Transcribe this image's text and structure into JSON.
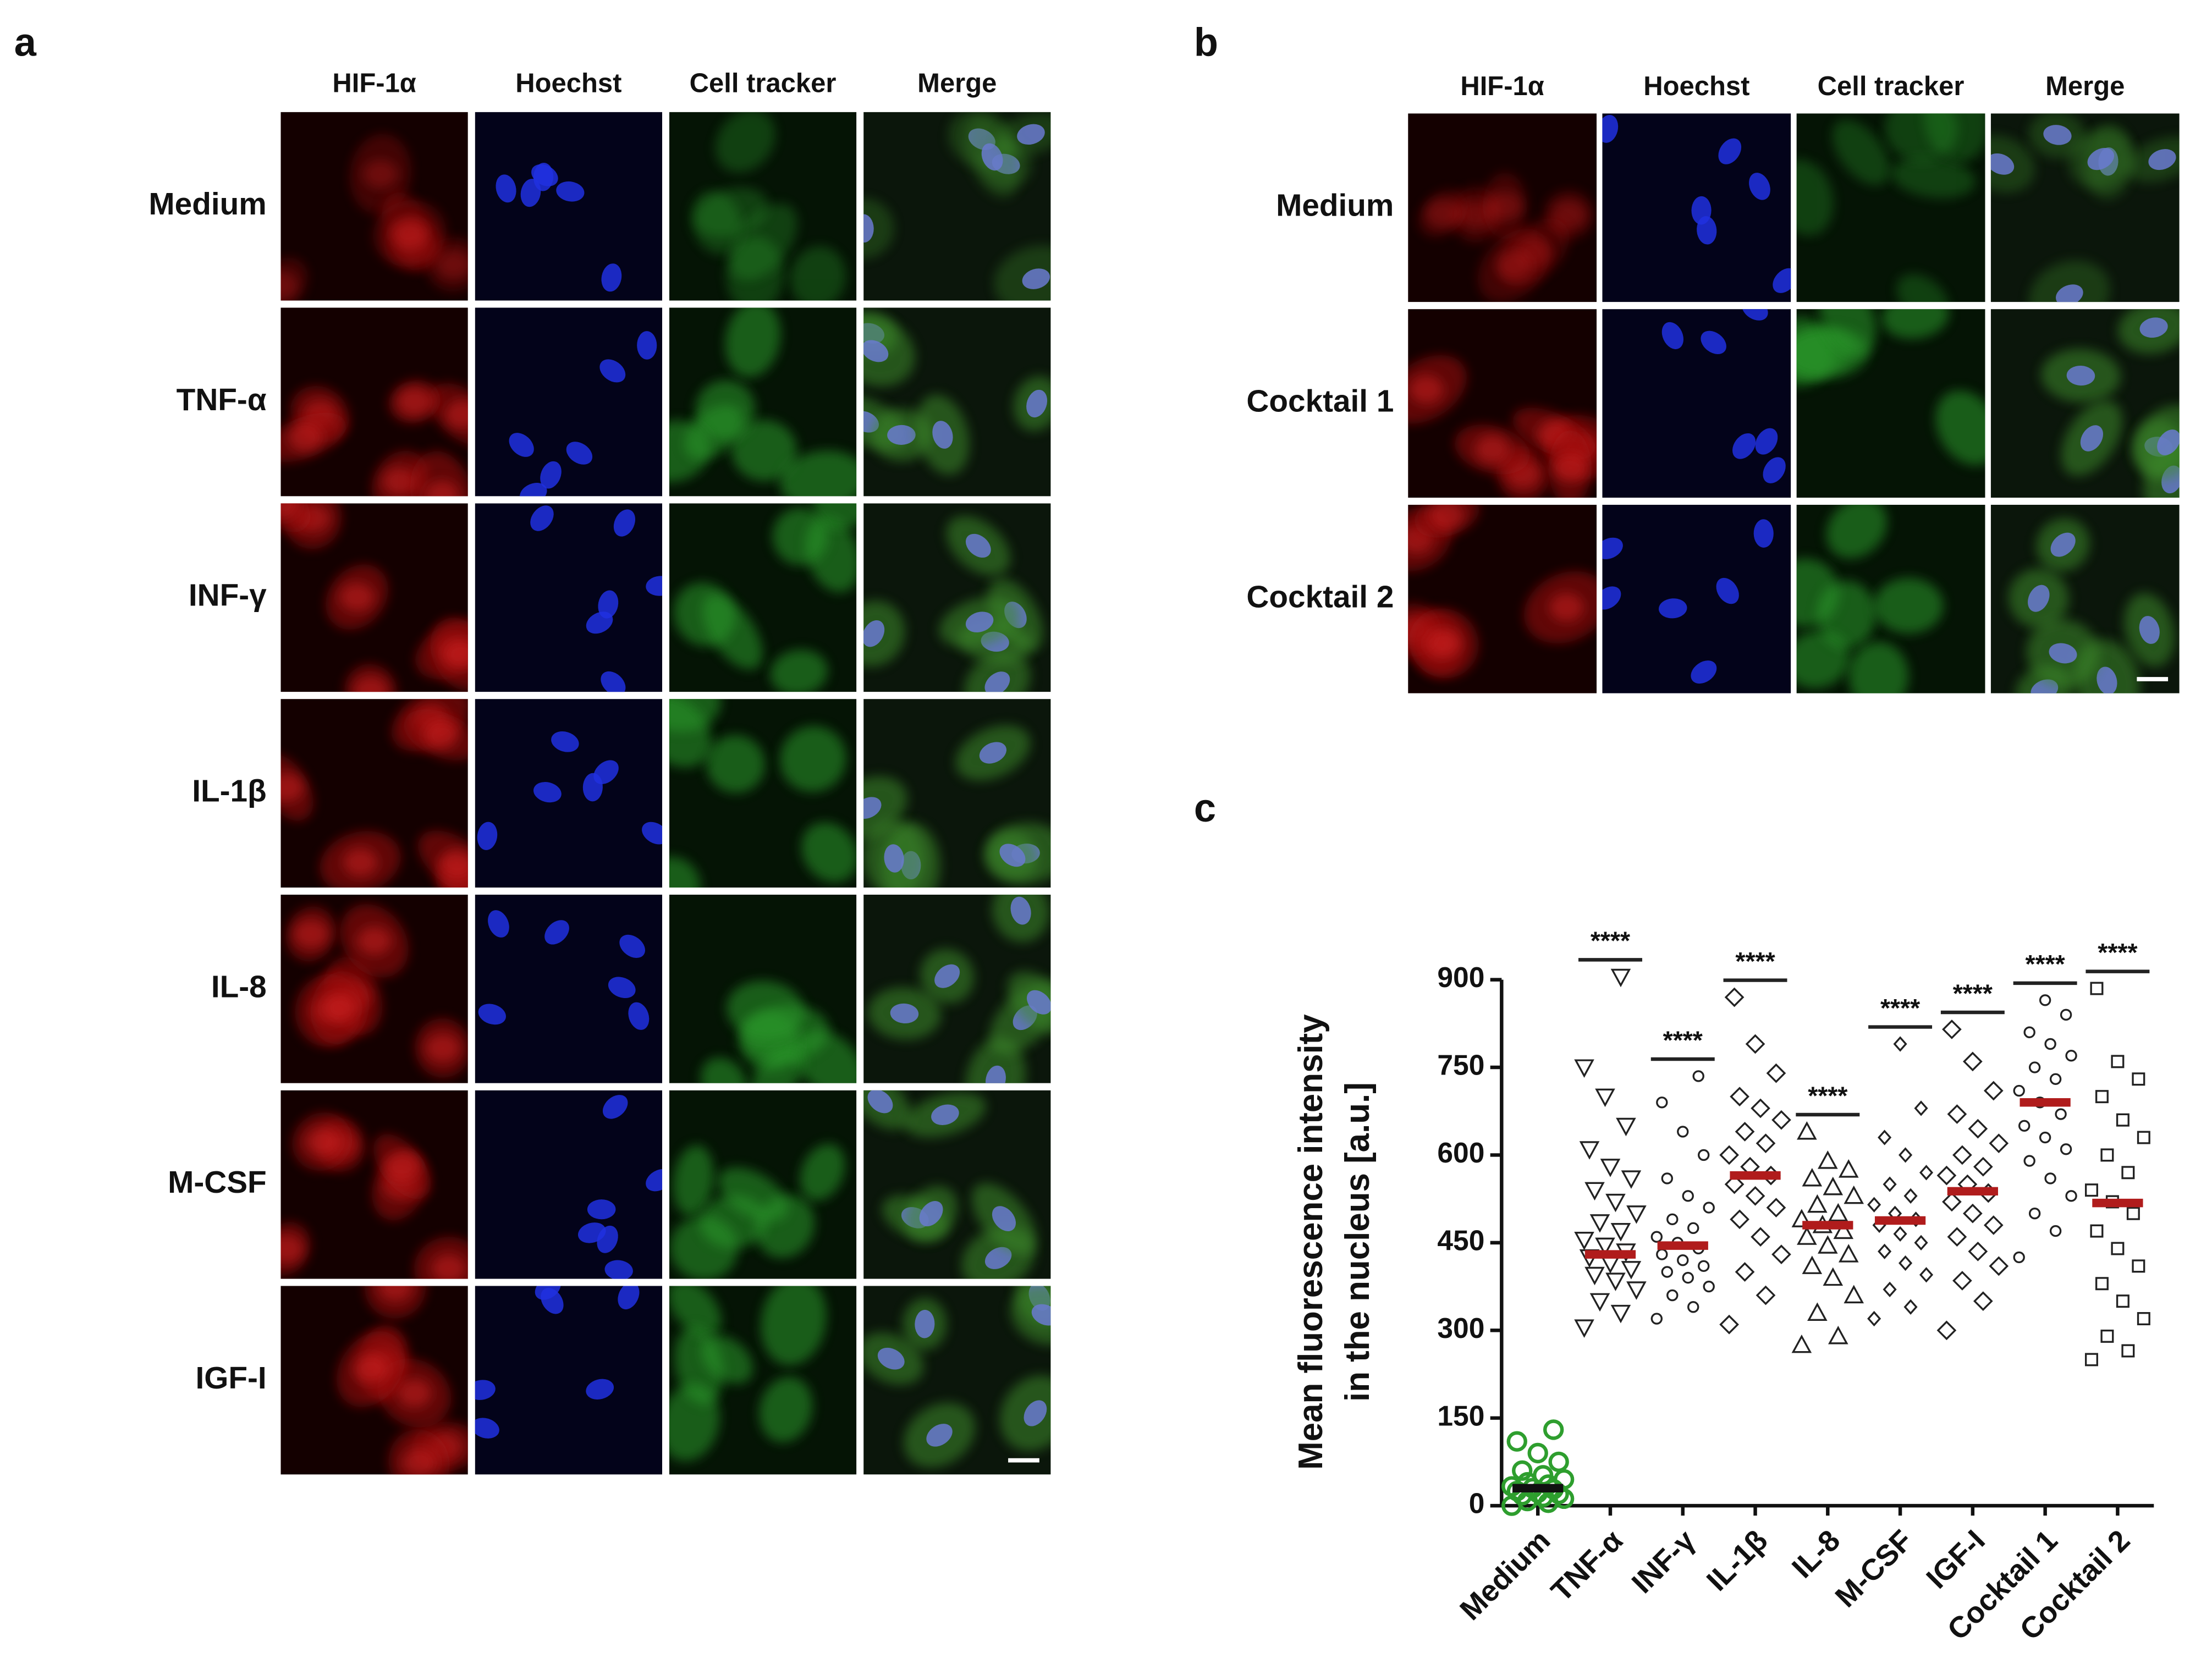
{
  "panel_a": {
    "label": "a",
    "columns": [
      "HIF-1α",
      "Hoechst",
      "Cell tracker",
      "Merge"
    ],
    "rows": [
      "Medium",
      "TNF-α",
      "INF-γ",
      "IL-1β",
      "IL-8",
      "M-CSF",
      "IGF-I"
    ]
  },
  "panel_b": {
    "label": "b",
    "columns": [
      "HIF-1α",
      "Hoechst",
      "Cell tracker",
      "Merge"
    ],
    "rows": [
      "Medium",
      "Cocktail 1",
      "Cocktail 2"
    ]
  },
  "chart_data": {
    "type": "scatter",
    "panel_label": "c",
    "y_label": [
      "Mean fluorescence intensity",
      "in the nucleus [a.u.]"
    ],
    "categories": [
      "Medium",
      "TNF-α",
      "INF-γ",
      "IL-1β",
      "IL-8",
      "M-CSF",
      "IGF-I",
      "Cocktail 1",
      "Cocktail 2"
    ],
    "ylim": [
      0,
      900
    ],
    "yticks": [
      0,
      150,
      300,
      450,
      600,
      750,
      900
    ],
    "groups": [
      {
        "marker": "circle",
        "color": "#2e9e2e",
        "mean": 30,
        "mean_color": "#111111",
        "significance": null,
        "values": [
          0,
          5,
          8,
          12,
          15,
          18,
          20,
          22,
          25,
          28,
          30,
          33,
          36,
          40,
          45,
          52,
          60,
          75,
          90,
          110,
          130
        ]
      },
      {
        "marker": "triangle-down",
        "color": "#222222",
        "mean": 430,
        "mean_color": "#b01c1c",
        "significance": "****",
        "values": [
          305,
          330,
          350,
          370,
          385,
          395,
          405,
          415,
          425,
          435,
          445,
          455,
          470,
          485,
          500,
          520,
          540,
          560,
          580,
          610,
          650,
          700,
          750,
          905
        ]
      },
      {
        "marker": "circle-small",
        "color": "#222222",
        "mean": 445,
        "mean_color": "#b01c1c",
        "significance": "****",
        "values": [
          320,
          340,
          360,
          375,
          390,
          400,
          410,
          420,
          430,
          440,
          450,
          460,
          475,
          490,
          510,
          530,
          560,
          600,
          640,
          690,
          735
        ]
      },
      {
        "marker": "diamond",
        "color": "#222222",
        "mean": 565,
        "mean_color": "#b01c1c",
        "significance": "****",
        "values": [
          310,
          360,
          400,
          430,
          460,
          490,
          510,
          530,
          550,
          565,
          580,
          600,
          620,
          640,
          660,
          680,
          700,
          740,
          790,
          870
        ]
      },
      {
        "marker": "triangle-up",
        "color": "#222222",
        "mean": 480,
        "mean_color": "#b01c1c",
        "significance": "****",
        "values": [
          275,
          290,
          330,
          360,
          390,
          410,
          430,
          445,
          460,
          470,
          480,
          490,
          500,
          515,
          530,
          545,
          560,
          575,
          590,
          640
        ]
      },
      {
        "marker": "diamond-small",
        "color": "#222222",
        "mean": 488,
        "mean_color": "#b01c1c",
        "significance": "****",
        "values": [
          320,
          340,
          370,
          395,
          415,
          435,
          450,
          465,
          480,
          490,
          500,
          515,
          530,
          550,
          570,
          600,
          630,
          680,
          790
        ]
      },
      {
        "marker": "diamond",
        "color": "#222222",
        "mean": 538,
        "mean_color": "#b01c1c",
        "significance": "****",
        "values": [
          300,
          350,
          385,
          410,
          435,
          460,
          480,
          500,
          520,
          535,
          550,
          565,
          580,
          600,
          620,
          645,
          670,
          710,
          760,
          815
        ]
      },
      {
        "marker": "circle-small",
        "color": "#222222",
        "mean": 690,
        "mean_color": "#b01c1c",
        "significance": "****",
        "values": [
          425,
          470,
          500,
          530,
          560,
          590,
          610,
          630,
          650,
          670,
          690,
          710,
          730,
          750,
          770,
          790,
          810,
          840,
          865
        ]
      },
      {
        "marker": "square",
        "color": "#222222",
        "mean": 518,
        "mean_color": "#b01c1c",
        "significance": "****",
        "values": [
          250,
          265,
          290,
          320,
          350,
          380,
          410,
          440,
          470,
          500,
          520,
          540,
          570,
          600,
          630,
          660,
          700,
          730,
          760,
          885
        ]
      }
    ]
  }
}
